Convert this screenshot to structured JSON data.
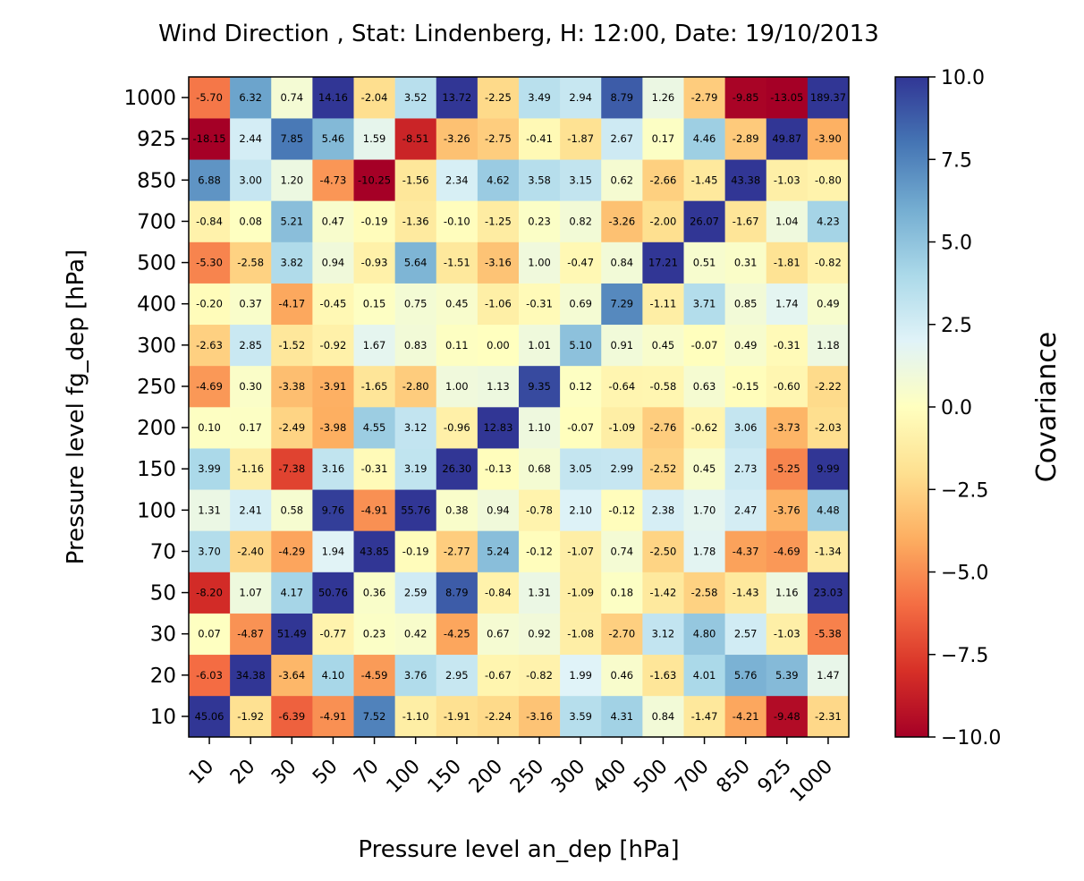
{
  "chart_data": {
    "type": "heatmap",
    "title": "Wind Direction , Stat: Lindenberg, H: 12:00, Date: 19/10/2013",
    "xlabel": "Pressure level an_dep [hPa]",
    "ylabel": "Pressure level fg_dep [hPa]",
    "x_categories": [
      "10",
      "20",
      "30",
      "50",
      "70",
      "100",
      "150",
      "200",
      "250",
      "300",
      "400",
      "500",
      "700",
      "850",
      "925",
      "1000"
    ],
    "y_categories": [
      "10",
      "20",
      "30",
      "50",
      "70",
      "100",
      "150",
      "200",
      "250",
      "300",
      "400",
      "500",
      "700",
      "850",
      "925",
      "1000"
    ],
    "values": [
      [
        45.06,
        -1.92,
        -6.39,
        -4.91,
        7.52,
        -1.1,
        -1.91,
        -2.24,
        -3.16,
        3.59,
        4.31,
        0.84,
        -1.47,
        -4.21,
        -9.48,
        -2.31
      ],
      [
        -6.03,
        34.38,
        -3.64,
        4.1,
        -4.59,
        3.76,
        2.95,
        -0.67,
        -0.82,
        1.99,
        0.46,
        -1.63,
        4.01,
        5.76,
        5.39,
        1.47
      ],
      [
        0.07,
        -4.87,
        51.49,
        -0.77,
        0.23,
        0.42,
        -4.25,
        0.67,
        0.92,
        -1.08,
        -2.7,
        3.12,
        4.8,
        2.57,
        -1.03,
        -5.38
      ],
      [
        -8.2,
        1.07,
        4.17,
        50.76,
        0.36,
        2.59,
        8.79,
        -0.84,
        1.31,
        -1.09,
        0.18,
        -1.42,
        -2.58,
        -1.43,
        1.16,
        23.03
      ],
      [
        3.7,
        -2.4,
        -4.29,
        1.94,
        43.85,
        -0.19,
        -2.77,
        5.24,
        -0.12,
        -1.07,
        0.74,
        -2.5,
        1.78,
        -4.37,
        -4.69,
        -1.34
      ],
      [
        1.31,
        2.41,
        0.58,
        9.76,
        -4.91,
        55.76,
        0.38,
        0.94,
        -0.78,
        2.1,
        -0.12,
        2.38,
        1.7,
        2.47,
        -3.76,
        4.48
      ],
      [
        3.99,
        -1.16,
        -7.38,
        3.16,
        -0.31,
        3.19,
        26.3,
        -0.13,
        0.68,
        3.05,
        2.99,
        -2.52,
        0.45,
        2.73,
        -5.25,
        9.99
      ],
      [
        0.1,
        0.17,
        -2.49,
        -3.98,
        4.55,
        3.12,
        -0.96,
        12.83,
        1.1,
        -0.07,
        -1.09,
        -2.76,
        -0.62,
        3.06,
        -3.73,
        -2.03
      ],
      [
        -4.69,
        0.3,
        -3.38,
        -3.91,
        -1.65,
        -2.8,
        1.0,
        1.13,
        9.35,
        0.12,
        -0.64,
        -0.58,
        0.63,
        -0.15,
        -0.6,
        -2.22
      ],
      [
        -2.63,
        2.85,
        -1.52,
        -0.92,
        1.67,
        0.83,
        0.11,
        -0.0,
        1.01,
        5.1,
        0.91,
        0.45,
        -0.07,
        0.49,
        -0.31,
        1.18
      ],
      [
        -0.2,
        0.37,
        -4.17,
        -0.45,
        0.15,
        0.75,
        0.45,
        -1.06,
        -0.31,
        0.69,
        7.29,
        -1.11,
        3.71,
        0.85,
        1.74,
        0.49
      ],
      [
        -5.3,
        -2.58,
        3.82,
        0.94,
        -0.93,
        5.64,
        -1.51,
        -3.16,
        1.0,
        -0.47,
        0.84,
        17.21,
        0.51,
        0.31,
        -1.81,
        -0.82
      ],
      [
        -0.84,
        0.08,
        5.21,
        0.47,
        -0.19,
        -1.36,
        -0.1,
        -1.25,
        0.23,
        0.82,
        -3.26,
        -2.0,
        26.07,
        -1.67,
        1.04,
        4.23
      ],
      [
        6.88,
        3.0,
        1.2,
        -4.73,
        -10.25,
        -1.56,
        2.34,
        4.62,
        3.58,
        3.15,
        0.62,
        -2.66,
        -1.45,
        43.38,
        -1.03,
        -0.8
      ],
      [
        -18.15,
        2.44,
        7.85,
        5.46,
        1.59,
        -8.51,
        -3.26,
        -2.75,
        -0.41,
        -1.87,
        2.67,
        0.17,
        4.46,
        -2.89,
        49.87,
        -3.9
      ],
      [
        -5.7,
        6.32,
        0.74,
        14.16,
        -2.04,
        3.52,
        13.72,
        -2.25,
        3.49,
        2.94,
        8.79,
        1.26,
        -2.79,
        -9.85,
        -13.05,
        189.37
      ]
    ],
    "colormap": "RdYlBu",
    "colorbar": {
      "label": "Covariance",
      "range": [
        -10.0,
        10.0
      ],
      "ticks": [
        "10.0",
        "7.5",
        "5.0",
        "2.5",
        "0.0",
        "−2.5",
        "−5.0",
        "−7.5",
        "−10.0"
      ]
    },
    "colors": [
      "#a50026",
      "#d73027",
      "#f46d43",
      "#fdae61",
      "#fee090",
      "#ffffbf",
      "#e0f3f8",
      "#abd9e9",
      "#74add1",
      "#4575b4",
      "#313695"
    ]
  }
}
